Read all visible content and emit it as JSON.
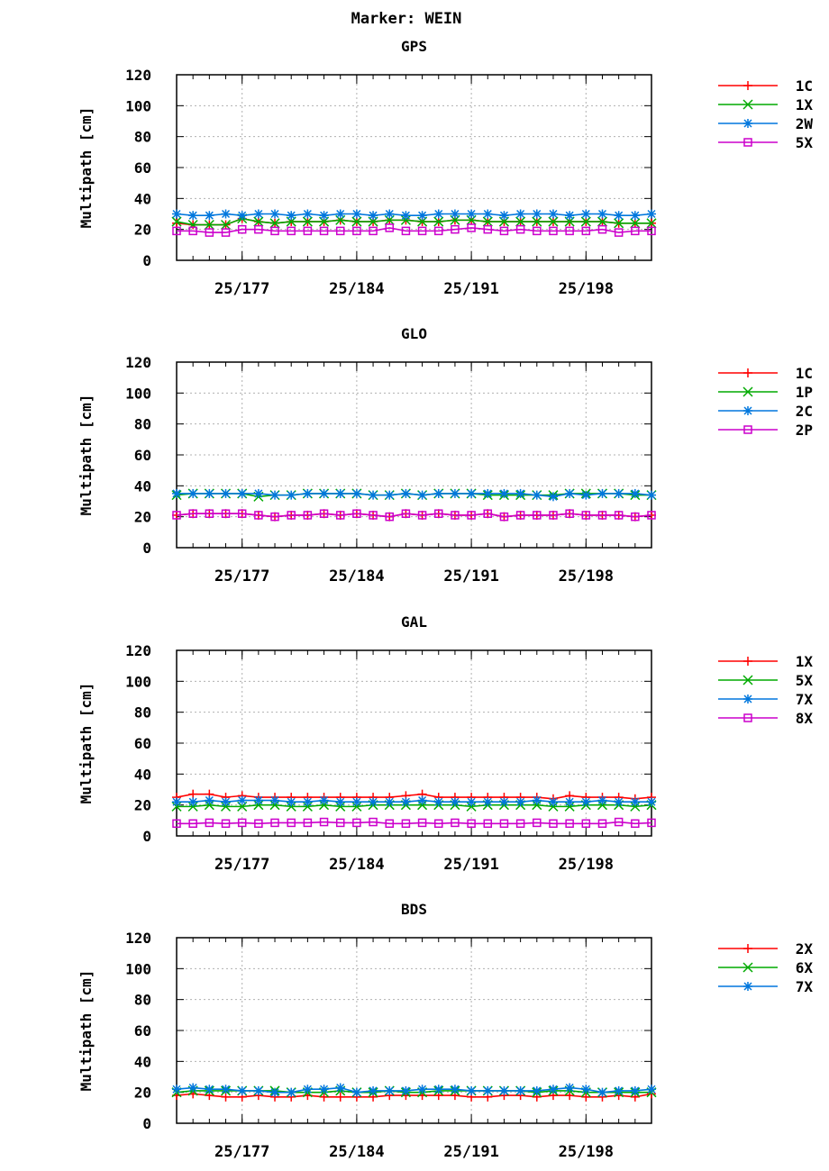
{
  "page_title": "Marker: WEIN",
  "chart_data": [
    {
      "type": "line",
      "title": "GPS",
      "ylabel": "Multipath [cm]",
      "ylim": [
        0,
        120
      ],
      "yticks": [
        0,
        20,
        40,
        60,
        80,
        100,
        120
      ],
      "x_start_doy": 173,
      "x_end_doy": 202,
      "x_points": [
        173,
        174,
        175,
        176,
        177,
        178,
        179,
        180,
        181,
        182,
        183,
        184,
        185,
        186,
        187,
        188,
        189,
        190,
        191,
        192,
        193,
        194,
        195,
        196,
        197,
        198,
        199,
        200,
        201,
        202
      ],
      "xtick_labels": [
        "25/177",
        "25/184",
        "25/191",
        "25/198"
      ],
      "xtick_doy": [
        177,
        184,
        191,
        198
      ],
      "series": [
        {
          "name": "1C",
          "color": "#ff0000",
          "marker": "plus",
          "values": [
            24,
            23,
            23,
            23,
            27,
            25,
            24,
            25,
            25,
            25,
            26,
            25,
            25,
            26,
            26,
            25,
            25,
            26,
            26,
            25,
            25,
            25,
            25,
            25,
            25,
            25,
            25,
            24,
            24,
            24
          ]
        },
        {
          "name": "1X",
          "color": "#00aa00",
          "marker": "x",
          "values": [
            25,
            23,
            23,
            23,
            27,
            25,
            24,
            25,
            25,
            25,
            26,
            25,
            25,
            26,
            26,
            25,
            25,
            26,
            26,
            25,
            25,
            25,
            25,
            25,
            25,
            25,
            25,
            24,
            24,
            24
          ]
        },
        {
          "name": "2W",
          "color": "#0077dd",
          "marker": "star",
          "values": [
            30,
            29,
            29,
            30,
            29,
            30,
            30,
            29,
            30,
            29,
            30,
            30,
            29,
            30,
            29,
            29,
            30,
            30,
            30,
            30,
            29,
            30,
            30,
            30,
            29,
            30,
            30,
            29,
            29,
            30
          ]
        },
        {
          "name": "5X",
          "color": "#cc00cc",
          "marker": "square",
          "values": [
            19,
            19,
            18,
            18,
            20,
            20,
            19,
            19,
            19,
            19,
            19,
            19,
            19,
            21,
            19,
            19,
            19,
            20,
            21,
            20,
            19,
            20,
            19,
            19,
            19,
            19,
            20,
            18,
            19,
            19
          ]
        }
      ]
    },
    {
      "type": "line",
      "title": "GLO",
      "ylabel": "Multipath [cm]",
      "ylim": [
        0,
        120
      ],
      "yticks": [
        0,
        20,
        40,
        60,
        80,
        100,
        120
      ],
      "x_start_doy": 173,
      "x_end_doy": 202,
      "x_points": [
        173,
        174,
        175,
        176,
        177,
        178,
        179,
        180,
        181,
        182,
        183,
        184,
        185,
        186,
        187,
        188,
        189,
        190,
        191,
        192,
        193,
        194,
        195,
        196,
        197,
        198,
        199,
        200,
        201,
        202
      ],
      "xtick_labels": [
        "25/177",
        "25/184",
        "25/191",
        "25/198"
      ],
      "xtick_doy": [
        177,
        184,
        191,
        198
      ],
      "series": [
        {
          "name": "1C",
          "color": "#ff0000",
          "marker": "plus",
          "values": [
            21,
            22,
            22,
            22,
            22,
            21,
            20,
            21,
            21,
            22,
            21,
            22,
            21,
            20,
            22,
            21,
            22,
            21,
            21,
            22,
            20,
            21,
            21,
            21,
            22,
            21,
            21,
            21,
            20,
            21
          ]
        },
        {
          "name": "1P",
          "color": "#00aa00",
          "marker": "x",
          "values": [
            34,
            35,
            35,
            35,
            35,
            33,
            34,
            34,
            35,
            35,
            35,
            35,
            34,
            34,
            35,
            34,
            35,
            35,
            35,
            34,
            34,
            34,
            34,
            34,
            35,
            35,
            35,
            35,
            34,
            34
          ]
        },
        {
          "name": "2C",
          "color": "#0077dd",
          "marker": "star",
          "values": [
            35,
            35,
            35,
            35,
            35,
            35,
            34,
            34,
            35,
            35,
            35,
            35,
            34,
            34,
            35,
            34,
            35,
            35,
            35,
            35,
            35,
            35,
            34,
            33,
            35,
            34,
            35,
            35,
            35,
            34
          ]
        },
        {
          "name": "2P",
          "color": "#cc00cc",
          "marker": "square",
          "values": [
            21,
            22,
            22,
            22,
            22,
            21,
            20,
            21,
            21,
            22,
            21,
            22,
            21,
            20,
            22,
            21,
            22,
            21,
            21,
            22,
            20,
            21,
            21,
            21,
            22,
            21,
            21,
            21,
            20,
            21
          ]
        }
      ]
    },
    {
      "type": "line",
      "title": "GAL",
      "ylabel": "Multipath [cm]",
      "ylim": [
        0,
        120
      ],
      "yticks": [
        0,
        20,
        40,
        60,
        80,
        100,
        120
      ],
      "x_start_doy": 173,
      "x_end_doy": 202,
      "x_points": [
        173,
        174,
        175,
        176,
        177,
        178,
        179,
        180,
        181,
        182,
        183,
        184,
        185,
        186,
        187,
        188,
        189,
        190,
        191,
        192,
        193,
        194,
        195,
        196,
        197,
        198,
        199,
        200,
        201,
        202
      ],
      "xtick_labels": [
        "25/177",
        "25/184",
        "25/191",
        "25/198"
      ],
      "xtick_doy": [
        177,
        184,
        191,
        198
      ],
      "series": [
        {
          "name": "1X",
          "color": "#ff0000",
          "marker": "plus",
          "values": [
            25,
            27,
            27,
            25,
            26,
            25,
            25,
            25,
            25,
            25,
            25,
            25,
            25,
            25,
            26,
            27,
            25,
            25,
            25,
            25,
            25,
            25,
            25,
            24,
            26,
            25,
            25,
            25,
            24,
            25
          ]
        },
        {
          "name": "5X",
          "color": "#00aa00",
          "marker": "x",
          "values": [
            19,
            19,
            20,
            19,
            19,
            20,
            20,
            19,
            19,
            20,
            19,
            19,
            20,
            20,
            20,
            20,
            20,
            20,
            19,
            20,
            20,
            20,
            20,
            19,
            19,
            20,
            20,
            20,
            19,
            20
          ]
        },
        {
          "name": "7X",
          "color": "#0077dd",
          "marker": "star",
          "values": [
            22,
            22,
            23,
            22,
            23,
            23,
            23,
            22,
            22,
            23,
            22,
            22,
            22,
            22,
            22,
            23,
            22,
            22,
            22,
            22,
            22,
            22,
            23,
            22,
            22,
            22,
            23,
            22,
            22,
            22
          ]
        },
        {
          "name": "8X",
          "color": "#cc00cc",
          "marker": "square",
          "values": [
            8,
            8,
            8.5,
            8,
            8.5,
            8,
            8.5,
            8.5,
            8.5,
            9,
            8.5,
            8.5,
            9,
            8,
            8,
            8.5,
            8,
            8.5,
            8,
            8,
            8,
            8,
            8.5,
            8,
            8,
            8,
            8,
            9,
            8,
            8.5
          ]
        }
      ]
    },
    {
      "type": "line",
      "title": "BDS",
      "ylabel": "Multipath [cm]",
      "ylim": [
        0,
        120
      ],
      "yticks": [
        0,
        20,
        40,
        60,
        80,
        100,
        120
      ],
      "x_start_doy": 173,
      "x_end_doy": 202,
      "x_points": [
        173,
        174,
        175,
        176,
        177,
        178,
        179,
        180,
        181,
        182,
        183,
        184,
        185,
        186,
        187,
        188,
        189,
        190,
        191,
        192,
        193,
        194,
        195,
        196,
        197,
        198,
        199,
        200,
        201,
        202
      ],
      "xtick_labels": [
        "25/177",
        "25/184",
        "25/191",
        "25/198"
      ],
      "xtick_doy": [
        177,
        184,
        191,
        198
      ],
      "series": [
        {
          "name": "2X",
          "color": "#ff0000",
          "marker": "plus",
          "values": [
            18,
            19,
            18,
            17,
            17,
            18,
            17,
            17,
            18,
            17,
            17,
            17,
            17,
            18,
            18,
            18,
            18,
            18,
            17,
            17,
            18,
            18,
            17,
            18,
            18,
            17,
            17,
            18,
            17,
            19
          ]
        },
        {
          "name": "6X",
          "color": "#00aa00",
          "marker": "x",
          "values": [
            20,
            21,
            21,
            21,
            21,
            21,
            21,
            20,
            20,
            20,
            21,
            20,
            20,
            21,
            20,
            20,
            21,
            21,
            21,
            21,
            21,
            21,
            20,
            21,
            21,
            20,
            20,
            20,
            20,
            20
          ]
        },
        {
          "name": "7X",
          "color": "#0077dd",
          "marker": "star",
          "values": [
            22,
            23,
            22,
            22,
            21,
            21,
            20,
            20,
            22,
            22,
            23,
            20,
            21,
            21,
            21,
            22,
            22,
            22,
            21,
            21,
            21,
            21,
            21,
            22,
            23,
            22,
            20,
            21,
            21,
            22
          ]
        }
      ]
    }
  ]
}
